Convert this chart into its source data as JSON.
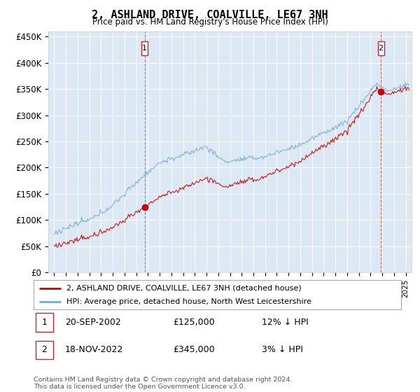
{
  "title": "2, ASHLAND DRIVE, COALVILLE, LE67 3NH",
  "subtitle": "Price paid vs. HM Land Registry's House Price Index (HPI)",
  "ylabel_ticks": [
    "£0",
    "£50K",
    "£100K",
    "£150K",
    "£200K",
    "£250K",
    "£300K",
    "£350K",
    "£400K",
    "£450K"
  ],
  "ytick_values": [
    0,
    50000,
    100000,
    150000,
    200000,
    250000,
    300000,
    350000,
    400000,
    450000
  ],
  "ylim": [
    0,
    460000
  ],
  "xlim_start": 1994.5,
  "xlim_end": 2025.5,
  "bg_color": "#dce9f5",
  "red_color": "#cc0000",
  "blue_color": "#7aaad4",
  "grid_color": "#ffffff",
  "purchase1_x": 2002.72,
  "purchase1_y": 125000,
  "purchase2_x": 2022.88,
  "purchase2_y": 345000,
  "legend_line1": "2, ASHLAND DRIVE, COALVILLE, LE67 3NH (detached house)",
  "legend_line2": "HPI: Average price, detached house, North West Leicestershire",
  "annot1_date": "20-SEP-2002",
  "annot1_price": "£125,000",
  "annot1_hpi": "12% ↓ HPI",
  "annot2_date": "18-NOV-2022",
  "annot2_price": "£345,000",
  "annot2_hpi": "3% ↓ HPI",
  "footer": "Contains HM Land Registry data © Crown copyright and database right 2024.\nThis data is licensed under the Open Government Licence v3.0."
}
